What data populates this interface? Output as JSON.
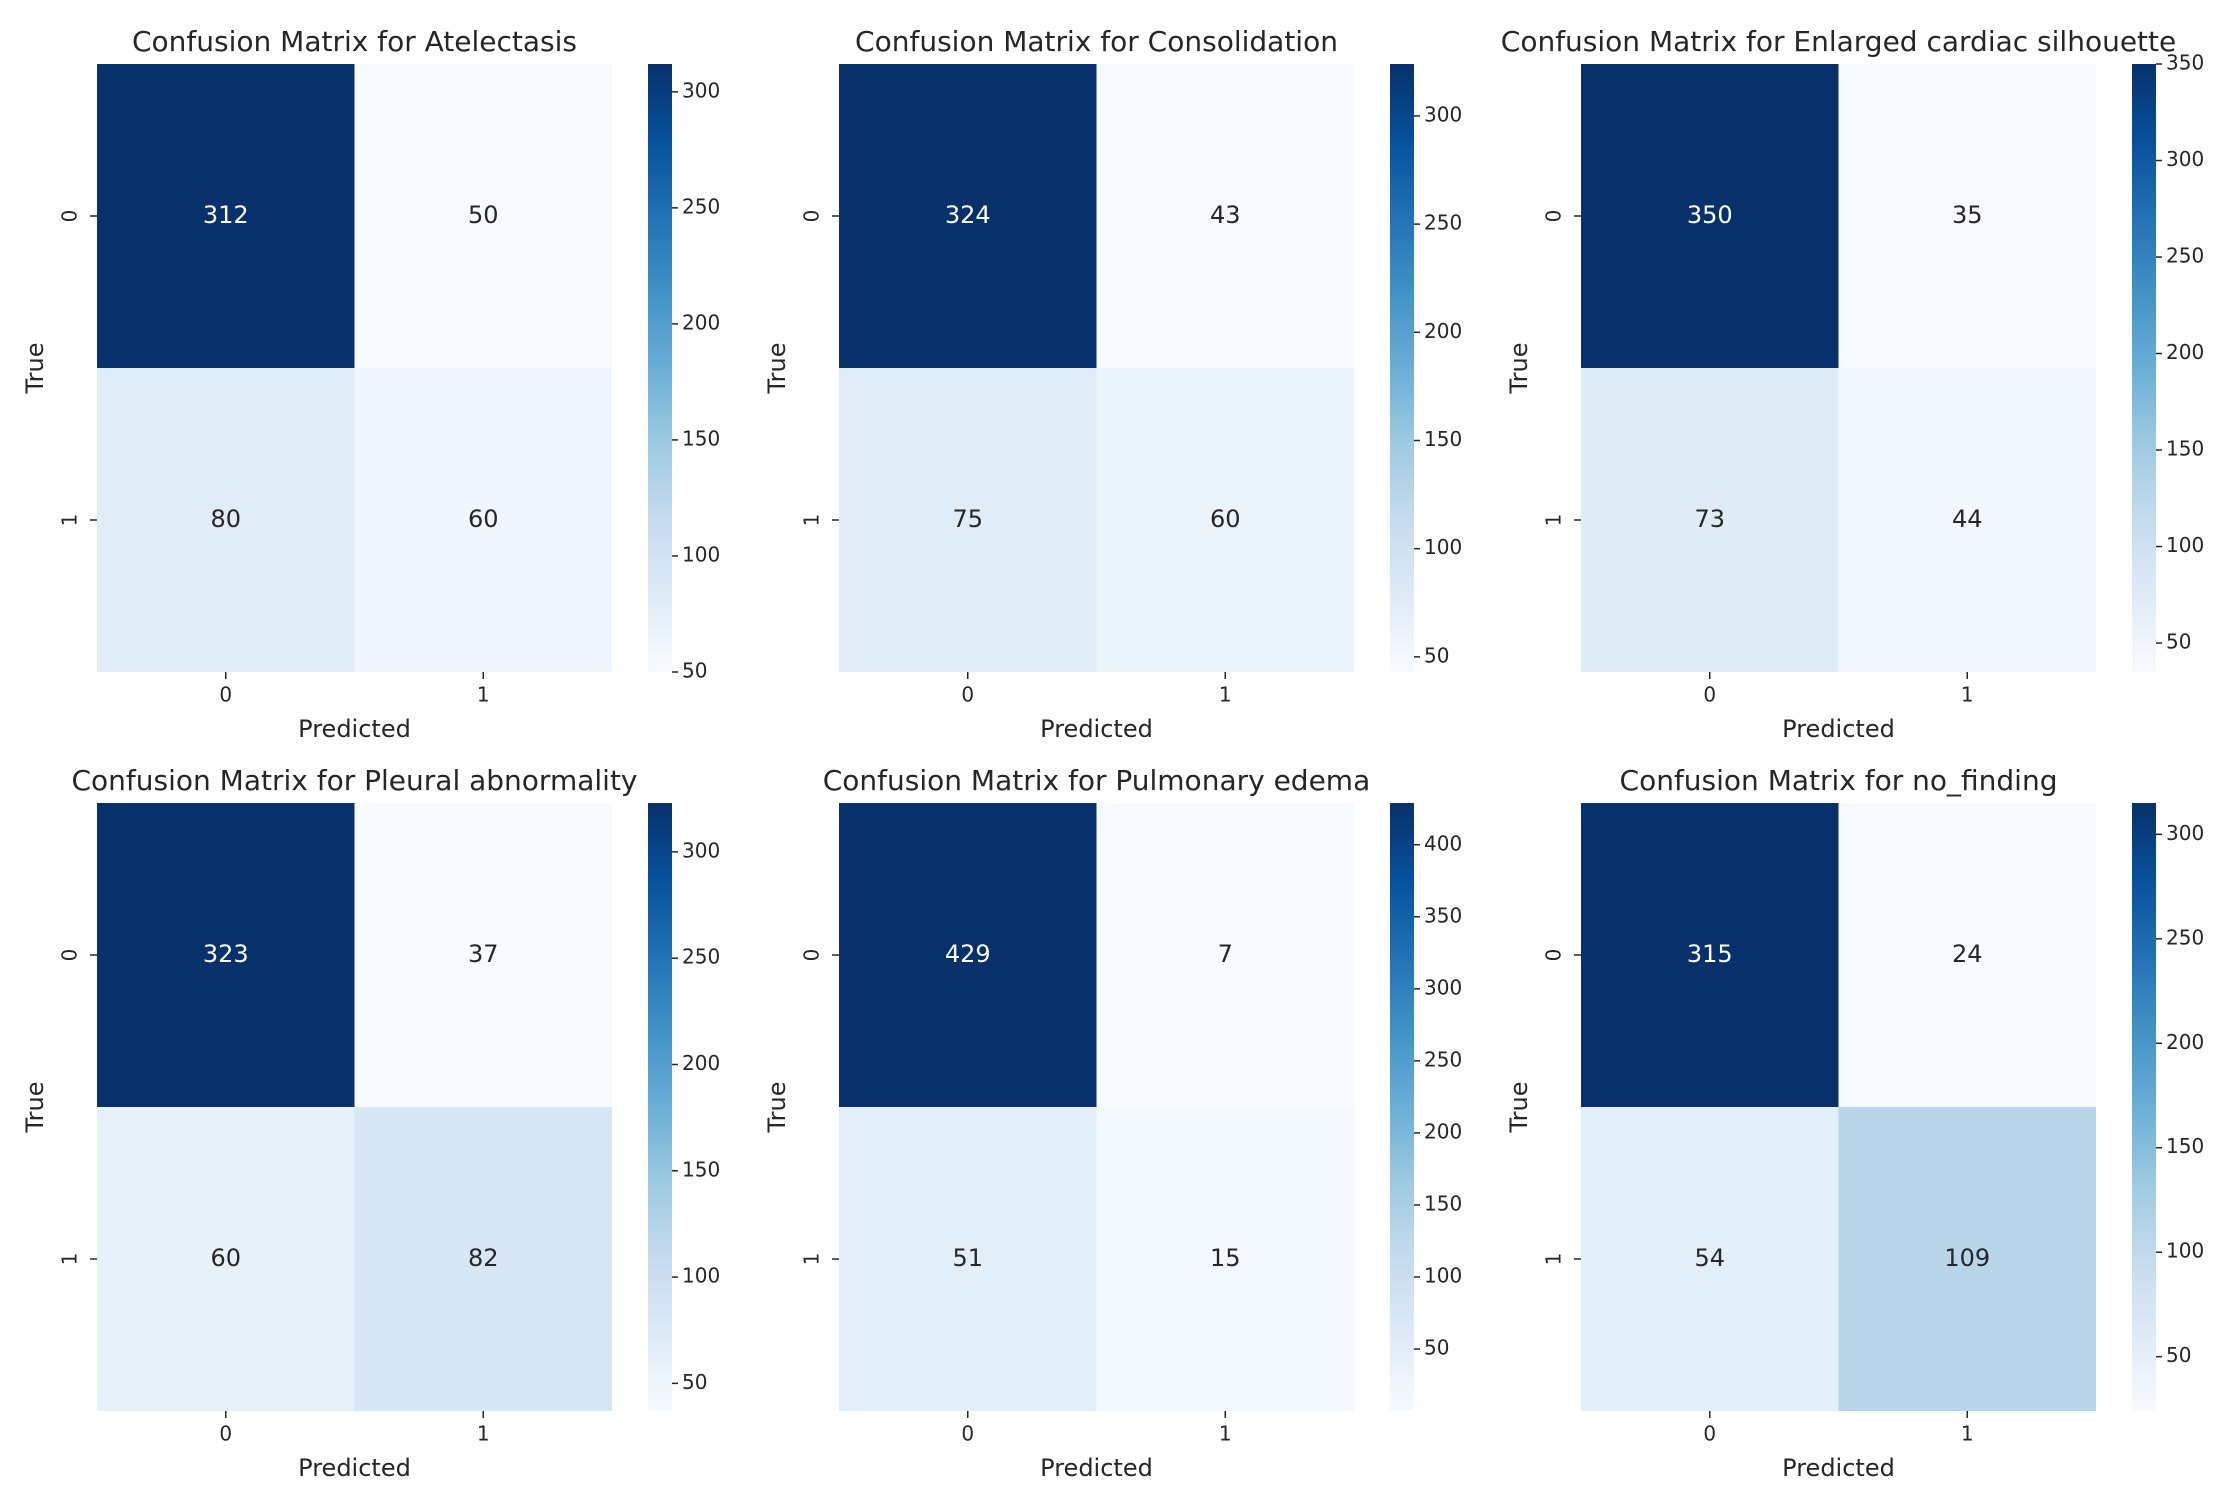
{
  "chart_data": [
    {
      "type": "heatmap",
      "title": "Confusion Matrix for Atelectasis",
      "xlabel": "Predicted",
      "ylabel": "True",
      "x_categories": [
        "0",
        "1"
      ],
      "y_categories": [
        "0",
        "1"
      ],
      "values": [
        [
          312,
          50
        ],
        [
          80,
          60
        ]
      ],
      "clim": [
        50,
        312
      ],
      "cticks": [
        50,
        100,
        150,
        200,
        250,
        300
      ],
      "cmap": [
        "#f7fbff",
        "#deebf7",
        "#c6dbef",
        "#9ecae1",
        "#6baed6",
        "#4292c6",
        "#2171b5",
        "#08519c",
        "#08306b"
      ]
    },
    {
      "type": "heatmap",
      "title": "Confusion Matrix for Consolidation",
      "xlabel": "Predicted",
      "ylabel": "True",
      "x_categories": [
        "0",
        "1"
      ],
      "y_categories": [
        "0",
        "1"
      ],
      "values": [
        [
          324,
          43
        ],
        [
          75,
          60
        ]
      ],
      "clim": [
        43,
        324
      ],
      "cticks": [
        50,
        100,
        150,
        200,
        250,
        300
      ],
      "cmap": [
        "#f7fbff",
        "#deebf7",
        "#c6dbef",
        "#9ecae1",
        "#6baed6",
        "#4292c6",
        "#2171b5",
        "#08519c",
        "#08306b"
      ]
    },
    {
      "type": "heatmap",
      "title": "Confusion Matrix for Enlarged cardiac silhouette",
      "xlabel": "Predicted",
      "ylabel": "True",
      "x_categories": [
        "0",
        "1"
      ],
      "y_categories": [
        "0",
        "1"
      ],
      "values": [
        [
          350,
          35
        ],
        [
          73,
          44
        ]
      ],
      "clim": [
        35,
        350
      ],
      "cticks": [
        50,
        100,
        150,
        200,
        250,
        300,
        350
      ],
      "cmap": [
        "#f7fbff",
        "#deebf7",
        "#c6dbef",
        "#9ecae1",
        "#6baed6",
        "#4292c6",
        "#2171b5",
        "#08519c",
        "#08306b"
      ]
    },
    {
      "type": "heatmap",
      "title": "Confusion Matrix for Pleural abnormality",
      "xlabel": "Predicted",
      "ylabel": "True",
      "x_categories": [
        "0",
        "1"
      ],
      "y_categories": [
        "0",
        "1"
      ],
      "values": [
        [
          323,
          37
        ],
        [
          60,
          82
        ]
      ],
      "clim": [
        37,
        323
      ],
      "cticks": [
        50,
        100,
        150,
        200,
        250,
        300
      ],
      "cmap": [
        "#f7fbff",
        "#deebf7",
        "#c6dbef",
        "#9ecae1",
        "#6baed6",
        "#4292c6",
        "#2171b5",
        "#08519c",
        "#08306b"
      ]
    },
    {
      "type": "heatmap",
      "title": "Confusion Matrix for Pulmonary edema",
      "xlabel": "Predicted",
      "ylabel": "True",
      "x_categories": [
        "0",
        "1"
      ],
      "y_categories": [
        "0",
        "1"
      ],
      "values": [
        [
          429,
          7
        ],
        [
          51,
          15
        ]
      ],
      "clim": [
        7,
        429
      ],
      "cticks": [
        50,
        100,
        150,
        200,
        250,
        300,
        350,
        400
      ],
      "cmap": [
        "#f7fbff",
        "#deebf7",
        "#c6dbef",
        "#9ecae1",
        "#6baed6",
        "#4292c6",
        "#2171b5",
        "#08519c",
        "#08306b"
      ]
    },
    {
      "type": "heatmap",
      "title": "Confusion Matrix for no_finding",
      "xlabel": "Predicted",
      "ylabel": "True",
      "x_categories": [
        "0",
        "1"
      ],
      "y_categories": [
        "0",
        "1"
      ],
      "values": [
        [
          315,
          24
        ],
        [
          54,
          109
        ]
      ],
      "clim": [
        24,
        315
      ],
      "cticks": [
        50,
        100,
        150,
        200,
        250,
        300
      ],
      "cmap": [
        "#f7fbff",
        "#deebf7",
        "#c6dbef",
        "#9ecae1",
        "#6baed6",
        "#4292c6",
        "#2171b5",
        "#08519c",
        "#08306b"
      ]
    }
  ]
}
